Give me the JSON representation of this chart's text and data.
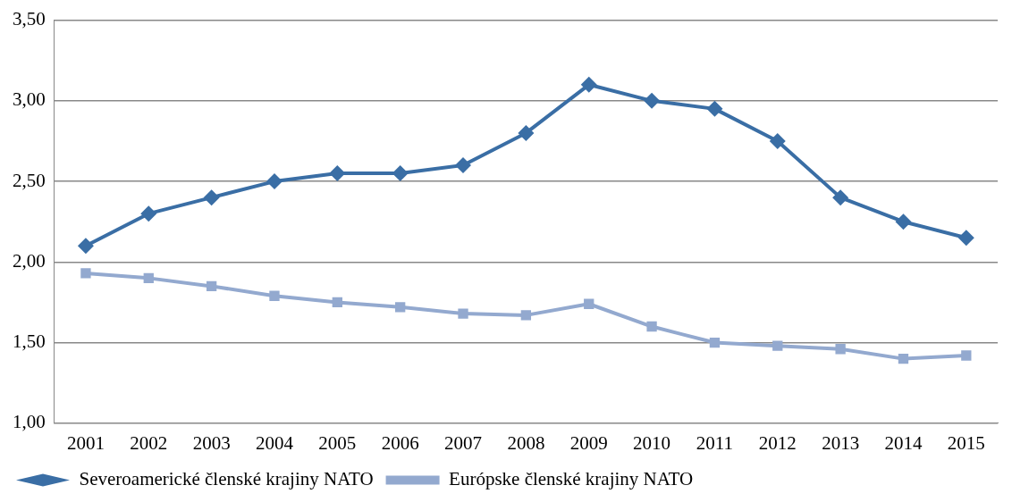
{
  "chart_data": {
    "type": "line",
    "categories": [
      "2001",
      "2002",
      "2003",
      "2004",
      "2005",
      "2006",
      "2007",
      "2008",
      "2009",
      "2010",
      "2011",
      "2012",
      "2013",
      "2014",
      "2015"
    ],
    "series": [
      {
        "name": "Severoamerické členské krajiny NATO",
        "color": "#3a6ea5",
        "marker": "diamond",
        "values": [
          2.1,
          2.3,
          2.4,
          2.5,
          2.55,
          2.55,
          2.6,
          2.8,
          3.1,
          3.0,
          2.95,
          2.75,
          2.4,
          2.25,
          2.15
        ]
      },
      {
        "name": "Európske členské krajiny NATO",
        "color": "#93a9cf",
        "marker": "square",
        "values": [
          1.93,
          1.9,
          1.85,
          1.79,
          1.75,
          1.72,
          1.68,
          1.67,
          1.74,
          1.6,
          1.5,
          1.48,
          1.46,
          1.4,
          1.42
        ]
      }
    ],
    "ylim": [
      1,
      3.5
    ],
    "yticks": [
      {
        "value": 1,
        "label": "1,00"
      },
      {
        "value": 1.5,
        "label": "1,50"
      },
      {
        "value": 2,
        "label": "2,00"
      },
      {
        "value": 2.5,
        "label": "2,50"
      },
      {
        "value": 3,
        "label": "3,00"
      },
      {
        "value": 3.5,
        "label": "3,50"
      }
    ],
    "grid": "y",
    "legend": "bottom",
    "line_style": "solid"
  }
}
